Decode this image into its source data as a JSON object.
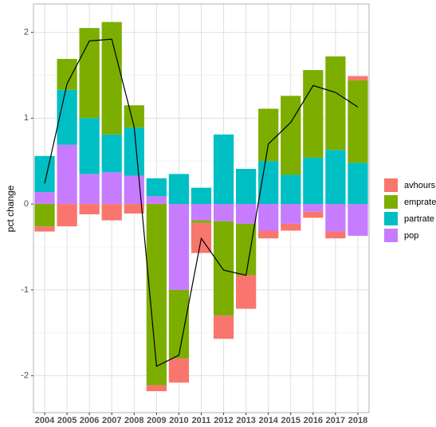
{
  "chart_data": {
    "type": "stacked-bar-line",
    "y_label": "pct change",
    "categories": [
      "2004",
      "2005",
      "2006",
      "2007",
      "2008",
      "2009",
      "2010",
      "2011",
      "2012",
      "2013",
      "2014",
      "2015",
      "2016",
      "2017",
      "2018"
    ],
    "series": [
      {
        "name": "avhours",
        "color": "#F8766D",
        "values": [
          -0.06,
          -0.26,
          -0.12,
          -0.19,
          -0.11,
          -0.07,
          -0.28,
          -0.35,
          -0.27,
          -0.39,
          -0.09,
          -0.08,
          -0.07,
          -0.08,
          0.05
        ]
      },
      {
        "name": "emprate",
        "color": "#7CAE00",
        "values": [
          -0.26,
          0.36,
          1.05,
          1.31,
          0.26,
          -2.11,
          -0.8,
          -0.03,
          -1.1,
          -0.6,
          0.61,
          0.92,
          1.02,
          1.09,
          0.96
        ]
      },
      {
        "name": "partrate",
        "color": "#00BFC4",
        "values": [
          0.42,
          0.64,
          0.65,
          0.44,
          0.56,
          0.21,
          0.35,
          0.19,
          0.81,
          0.41,
          0.5,
          0.34,
          0.54,
          0.63,
          0.48
        ]
      },
      {
        "name": "pop",
        "color": "#C77CFF",
        "values": [
          0.14,
          0.69,
          0.35,
          0.37,
          0.33,
          0.09,
          -1.0,
          -0.19,
          -0.2,
          -0.23,
          -0.31,
          -0.23,
          -0.09,
          -0.32,
          -0.37
        ]
      }
    ],
    "line": {
      "color": "#000000",
      "values": [
        0.24,
        1.4,
        1.9,
        1.92,
        0.9,
        -1.89,
        -1.76,
        -0.4,
        -0.77,
        -0.83,
        0.7,
        0.95,
        1.38,
        1.3,
        1.13
      ]
    },
    "ylim": [
      -2.43,
      2.33
    ],
    "yticks": [
      -2,
      -1,
      0,
      1,
      2
    ],
    "grid": true
  }
}
